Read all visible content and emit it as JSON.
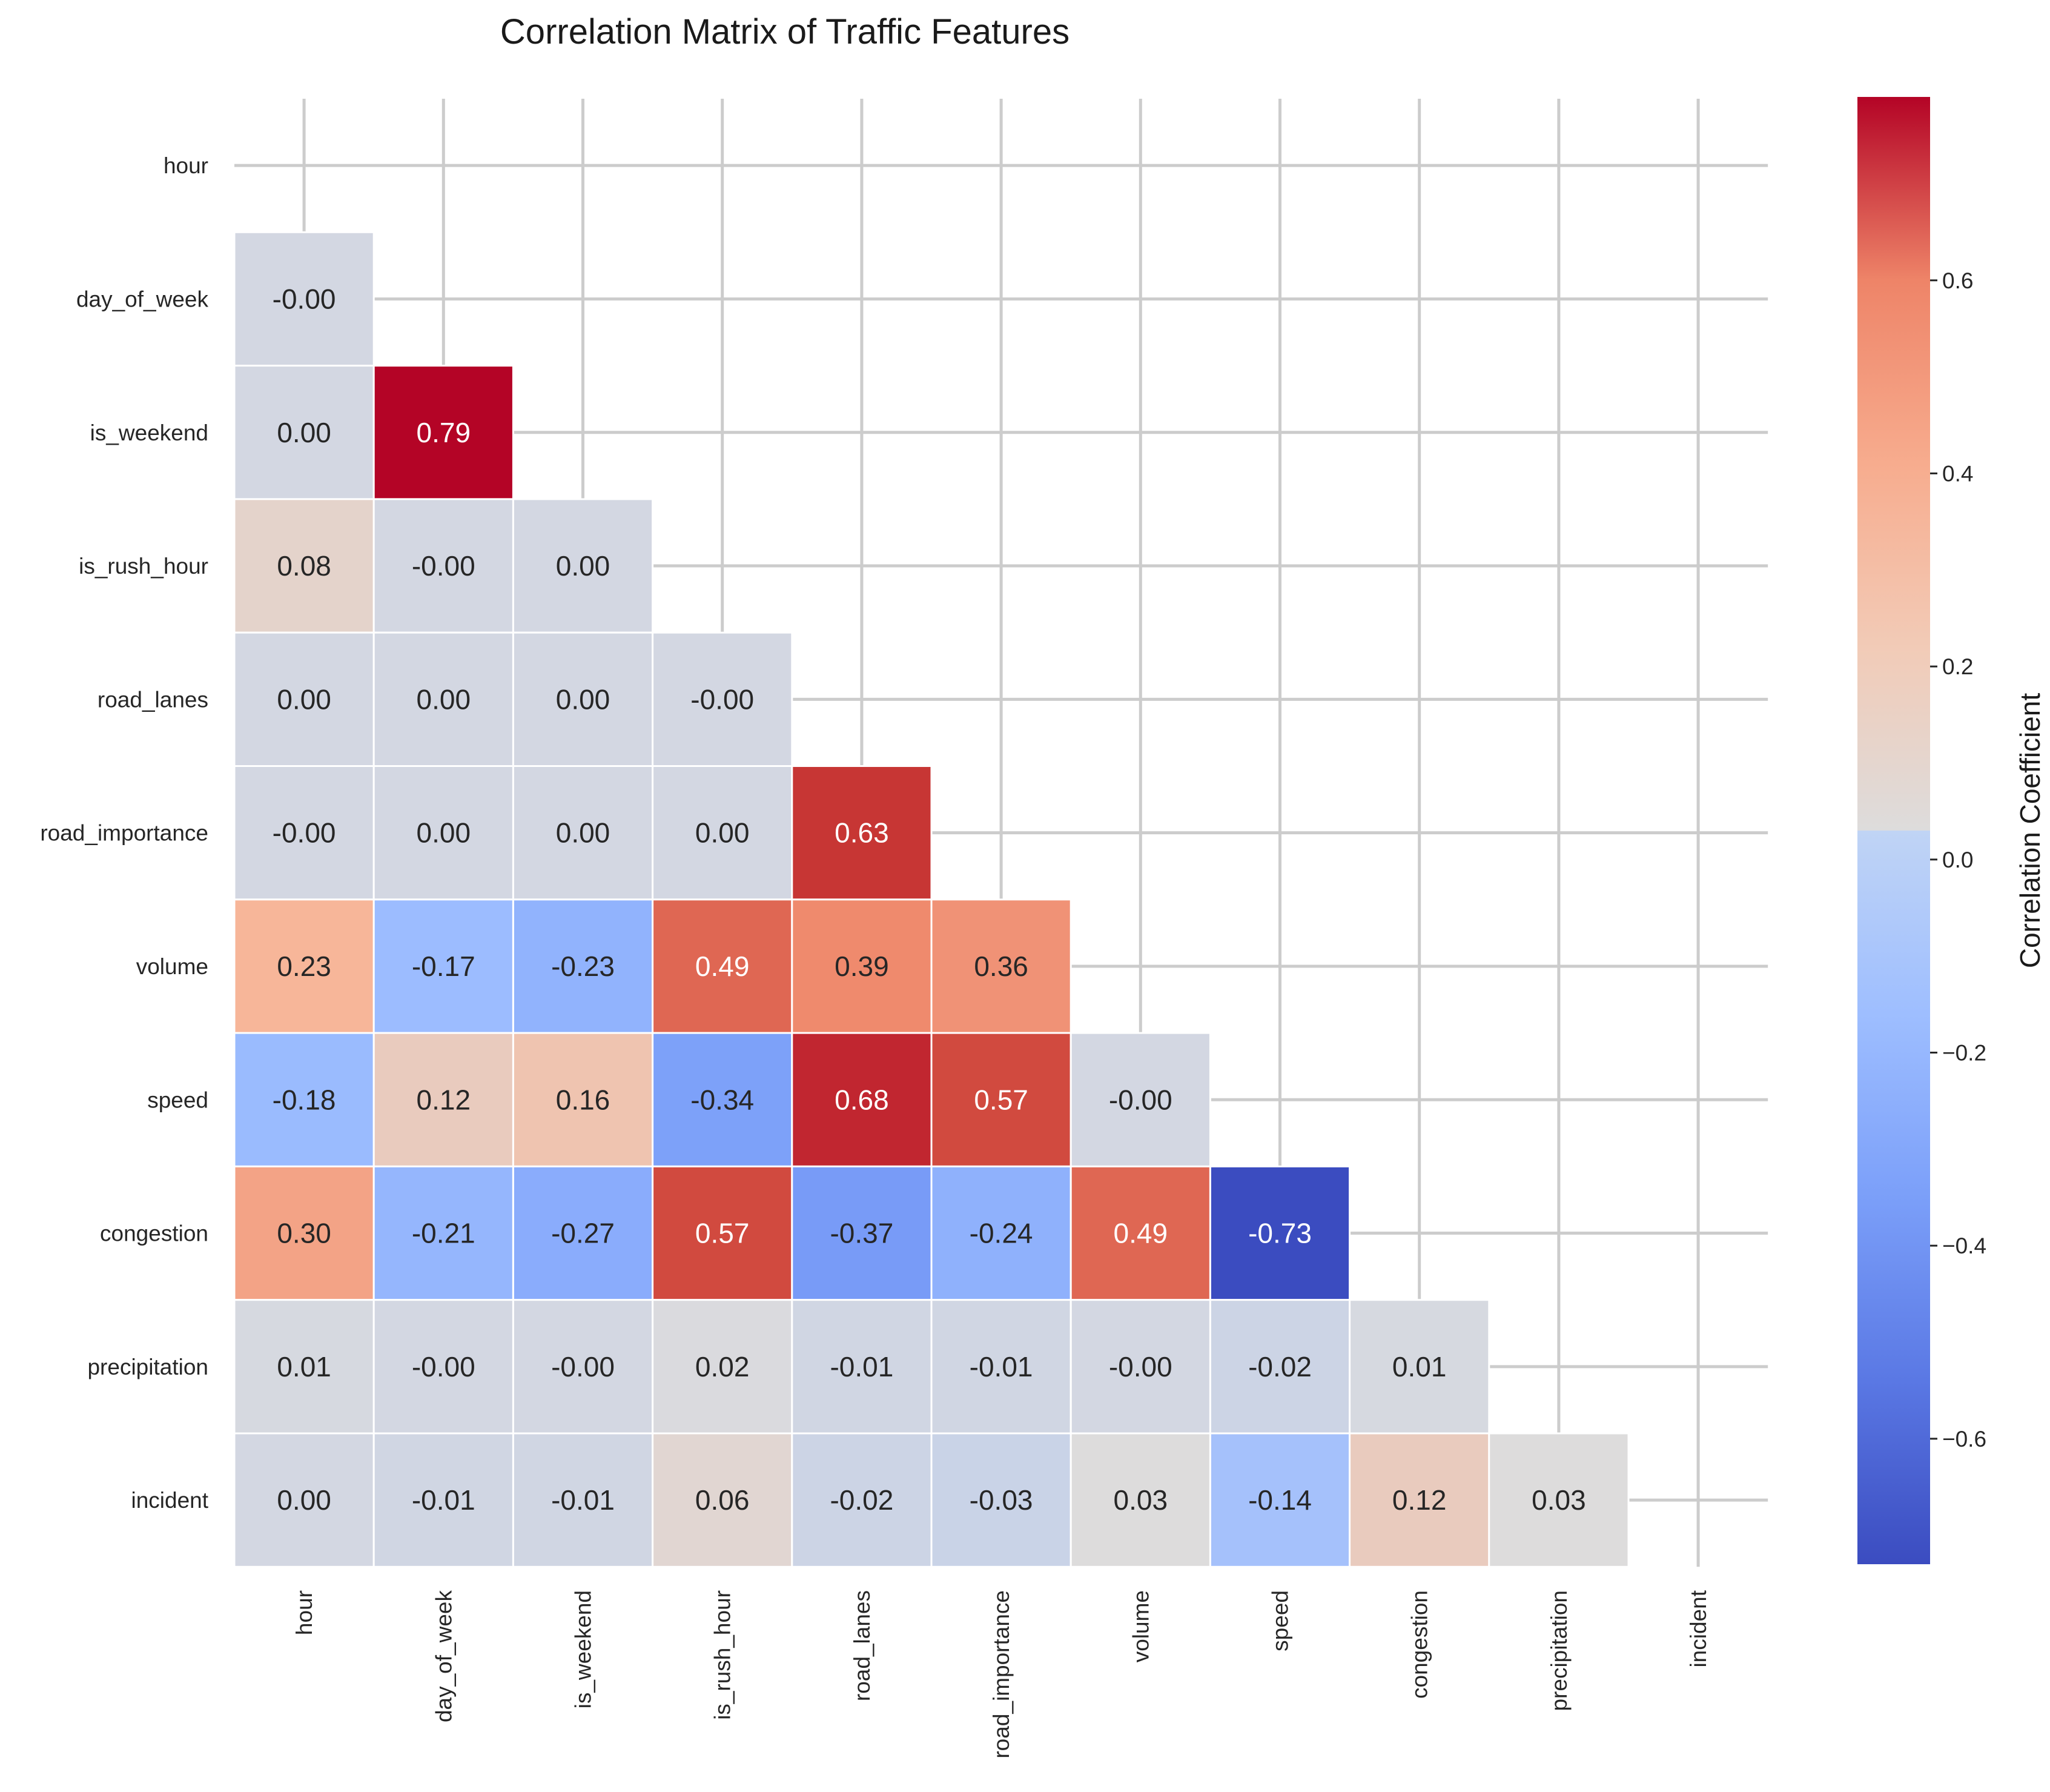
{
  "chart_data": {
    "type": "heatmap",
    "title": "Correlation Matrix of Traffic Features",
    "labels": [
      "hour",
      "day_of_week",
      "is_weekend",
      "is_rush_hour",
      "road_lanes",
      "road_importance",
      "volume",
      "speed",
      "congestion",
      "precipitation",
      "incident"
    ],
    "mask": "upper triangle including diagonal (lower triangle shown)",
    "values": [
      [
        null,
        null,
        null,
        null,
        null,
        null,
        null,
        null,
        null,
        null,
        null
      ],
      [
        "-0.00",
        null,
        null,
        null,
        null,
        null,
        null,
        null,
        null,
        null,
        null
      ],
      [
        "0.00",
        "0.79",
        null,
        null,
        null,
        null,
        null,
        null,
        null,
        null,
        null
      ],
      [
        "0.08",
        "-0.00",
        "0.00",
        null,
        null,
        null,
        null,
        null,
        null,
        null,
        null
      ],
      [
        "0.00",
        "0.00",
        "0.00",
        "-0.00",
        null,
        null,
        null,
        null,
        null,
        null,
        null
      ],
      [
        "-0.00",
        "0.00",
        "0.00",
        "0.00",
        "0.63",
        null,
        null,
        null,
        null,
        null,
        null
      ],
      [
        "0.23",
        "-0.17",
        "-0.23",
        "0.49",
        "0.39",
        "0.36",
        null,
        null,
        null,
        null,
        null
      ],
      [
        "-0.18",
        "0.12",
        "0.16",
        "-0.34",
        "0.68",
        "0.57",
        "-0.00",
        null,
        null,
        null,
        null
      ],
      [
        "0.30",
        "-0.21",
        "-0.27",
        "0.57",
        "-0.37",
        "-0.24",
        "0.49",
        "-0.73",
        null,
        null,
        null
      ],
      [
        "0.01",
        "-0.00",
        "-0.00",
        "0.02",
        "-0.01",
        "-0.01",
        "-0.00",
        "-0.02",
        "0.01",
        null,
        null
      ],
      [
        "0.00",
        "-0.01",
        "-0.01",
        "0.06",
        "-0.02",
        "-0.03",
        "0.03",
        "-0.14",
        "0.12",
        "0.03",
        null
      ]
    ],
    "colormap": "coolwarm",
    "colorbar": {
      "label": "Correlation Coefficient",
      "range": [
        -0.73,
        0.79
      ],
      "ticks": [
        "0.6",
        "0.4",
        "0.2",
        "0.0",
        "−0.2",
        "−0.4",
        "−0.6"
      ],
      "tick_values": [
        0.6,
        0.4,
        0.2,
        0.0,
        -0.2,
        -0.4,
        -0.6
      ]
    },
    "grid": true
  }
}
